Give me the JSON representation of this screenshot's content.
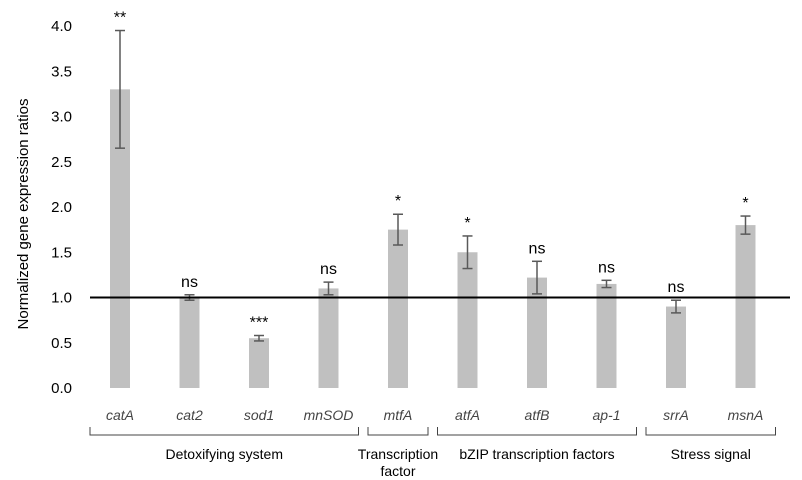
{
  "chart_data": {
    "type": "bar",
    "ylabel": "Normalized gene expression ratios",
    "ylim": [
      0,
      4.0
    ],
    "yticks": [
      "4.0",
      "3.5",
      "3.0",
      "2.5",
      "2.0",
      "1.5",
      "1.0",
      "0.5",
      "0.0"
    ],
    "reference_line": 1.0,
    "colors": {
      "bar": "#c0c0c0",
      "error": "#595959",
      "reference": "#000000"
    },
    "categories": [
      "catA",
      "cat2",
      "sod1",
      "mnSOD",
      "mtfA",
      "atfA",
      "atfB",
      "ap-1",
      "srrA",
      "msnA"
    ],
    "values": [
      3.3,
      1.0,
      0.55,
      1.1,
      1.75,
      1.5,
      1.22,
      1.15,
      0.9,
      1.8
    ],
    "errors": [
      0.65,
      0.03,
      0.03,
      0.07,
      0.17,
      0.18,
      0.18,
      0.04,
      0.07,
      0.1
    ],
    "significance": [
      "**",
      "ns",
      "***",
      "ns",
      "*",
      "*",
      "ns",
      "ns",
      "ns",
      "*"
    ],
    "groups": [
      {
        "label_lines": [
          "Detoxifying system"
        ],
        "start": 0,
        "end": 3
      },
      {
        "label_lines": [
          "Transcription",
          "factor"
        ],
        "start": 4,
        "end": 4
      },
      {
        "label_lines": [
          "bZIP transcription factors"
        ],
        "start": 5,
        "end": 7
      },
      {
        "label_lines": [
          "Stress signal"
        ],
        "start": 8,
        "end": 9
      }
    ]
  }
}
